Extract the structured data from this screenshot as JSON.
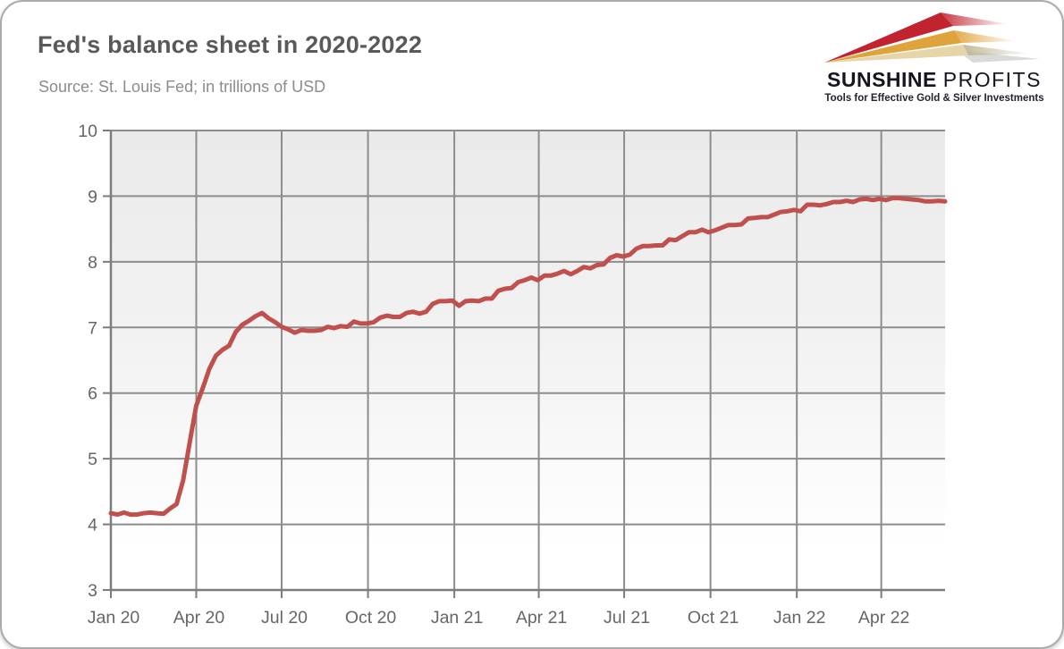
{
  "card": {
    "title": "Fed's balance sheet in 2020-2022",
    "source": "Source: St. Louis Fed; in trillions of USD"
  },
  "logo": {
    "word1": "SUNSHINE",
    "word2": "PROFITS",
    "tagline": "Tools for Effective Gold & Silver Investments",
    "colors": {
      "red": "#c1232f",
      "gold": "#dfa33b",
      "tan": "#e6d5a9",
      "text": "#15151f"
    }
  },
  "chart_data": {
    "type": "line",
    "title": "Fed's balance sheet in 2020-2022",
    "subtitle": "Source: St. Louis Fed; in trillions of USD",
    "ylabel": "",
    "xlabel": "",
    "unit": "trillions of USD",
    "ylim": [
      3,
      10
    ],
    "y_ticks": [
      3,
      4,
      5,
      6,
      7,
      8,
      9,
      10
    ],
    "x_total_days": 889,
    "x_ticks": [
      {
        "label": "Jan 20",
        "day": 0
      },
      {
        "label": "Apr 20",
        "day": 91
      },
      {
        "label": "Jul 20",
        "day": 182
      },
      {
        "label": "Oct 20",
        "day": 274
      },
      {
        "label": "Jan 21",
        "day": 366
      },
      {
        "label": "Apr 21",
        "day": 456
      },
      {
        "label": "Jul 21",
        "day": 547
      },
      {
        "label": "Oct 21",
        "day": 639
      },
      {
        "label": "Jan 22",
        "day": 731
      },
      {
        "label": "Apr 22",
        "day": 821
      }
    ],
    "grid": true,
    "legend_position": "none",
    "plot_bg_gradient": [
      "#eaeaea",
      "#f5f5f5",
      "#ffffff"
    ],
    "grid_color": "#8d8d8d",
    "axis_color": "#7d7d7d",
    "series": [
      {
        "name": "Fed balance sheet (total assets, trillions USD)",
        "color": "#c0504d",
        "interval": "weekly",
        "start": "Jan 2020",
        "end": "Jun 2022",
        "step_days": 7,
        "values": [
          4.17,
          4.15,
          4.18,
          4.15,
          4.15,
          4.17,
          4.18,
          4.17,
          4.16,
          4.24,
          4.31,
          4.67,
          5.25,
          5.81,
          6.08,
          6.37,
          6.57,
          6.66,
          6.72,
          6.93,
          7.04,
          7.1,
          7.17,
          7.22,
          7.14,
          7.08,
          7.01,
          6.97,
          6.92,
          6.96,
          6.95,
          6.95,
          6.96,
          7.01,
          6.99,
          7.02,
          7.01,
          7.09,
          7.06,
          7.06,
          7.08,
          7.15,
          7.18,
          7.16,
          7.16,
          7.22,
          7.24,
          7.21,
          7.24,
          7.36,
          7.4,
          7.4,
          7.41,
          7.33,
          7.4,
          7.41,
          7.4,
          7.44,
          7.44,
          7.56,
          7.59,
          7.6,
          7.69,
          7.72,
          7.76,
          7.72,
          7.79,
          7.79,
          7.82,
          7.86,
          7.81,
          7.86,
          7.92,
          7.9,
          7.95,
          7.96,
          8.06,
          8.1,
          8.08,
          8.11,
          8.2,
          8.24,
          8.24,
          8.25,
          8.25,
          8.34,
          8.33,
          8.39,
          8.45,
          8.45,
          8.49,
          8.45,
          8.48,
          8.52,
          8.56,
          8.56,
          8.57,
          8.66,
          8.67,
          8.68,
          8.68,
          8.72,
          8.76,
          8.77,
          8.79,
          8.77,
          8.87,
          8.87,
          8.86,
          8.88,
          8.91,
          8.91,
          8.93,
          8.91,
          8.95,
          8.96,
          8.94,
          8.96,
          8.94,
          8.97,
          8.97,
          8.96,
          8.95,
          8.94,
          8.92,
          8.92,
          8.93,
          8.92
        ]
      }
    ]
  }
}
